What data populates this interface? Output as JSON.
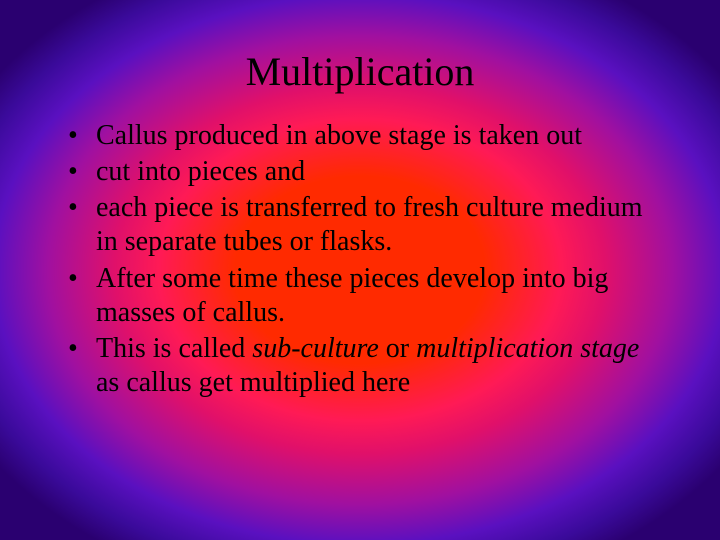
{
  "slide": {
    "title": "Multiplication",
    "title_fontsize": 40,
    "body_fontsize": 28,
    "font_family": "Times New Roman",
    "text_color": "#000000",
    "background": {
      "type": "radial-gradient",
      "center_color": "#ff2a00",
      "mid_colors": [
        "#ff1a55",
        "#e0106a",
        "#a010a0",
        "#5a10c0"
      ],
      "edge_color": "#2a0070"
    },
    "bullets": [
      {
        "text": "Callus produced in above stage is taken out"
      },
      {
        "text": "cut into pieces and"
      },
      {
        "text": "each piece is transferred to fresh culture medium in separate tubes or flasks."
      },
      {
        "text": "After some time these pieces develop into big masses of callus."
      },
      {
        "prefix": "This is called ",
        "italic1": "sub-culture",
        "mid": " or ",
        "italic2": "multiplication stage",
        "suffix": " as callus get multiplied here"
      }
    ]
  }
}
